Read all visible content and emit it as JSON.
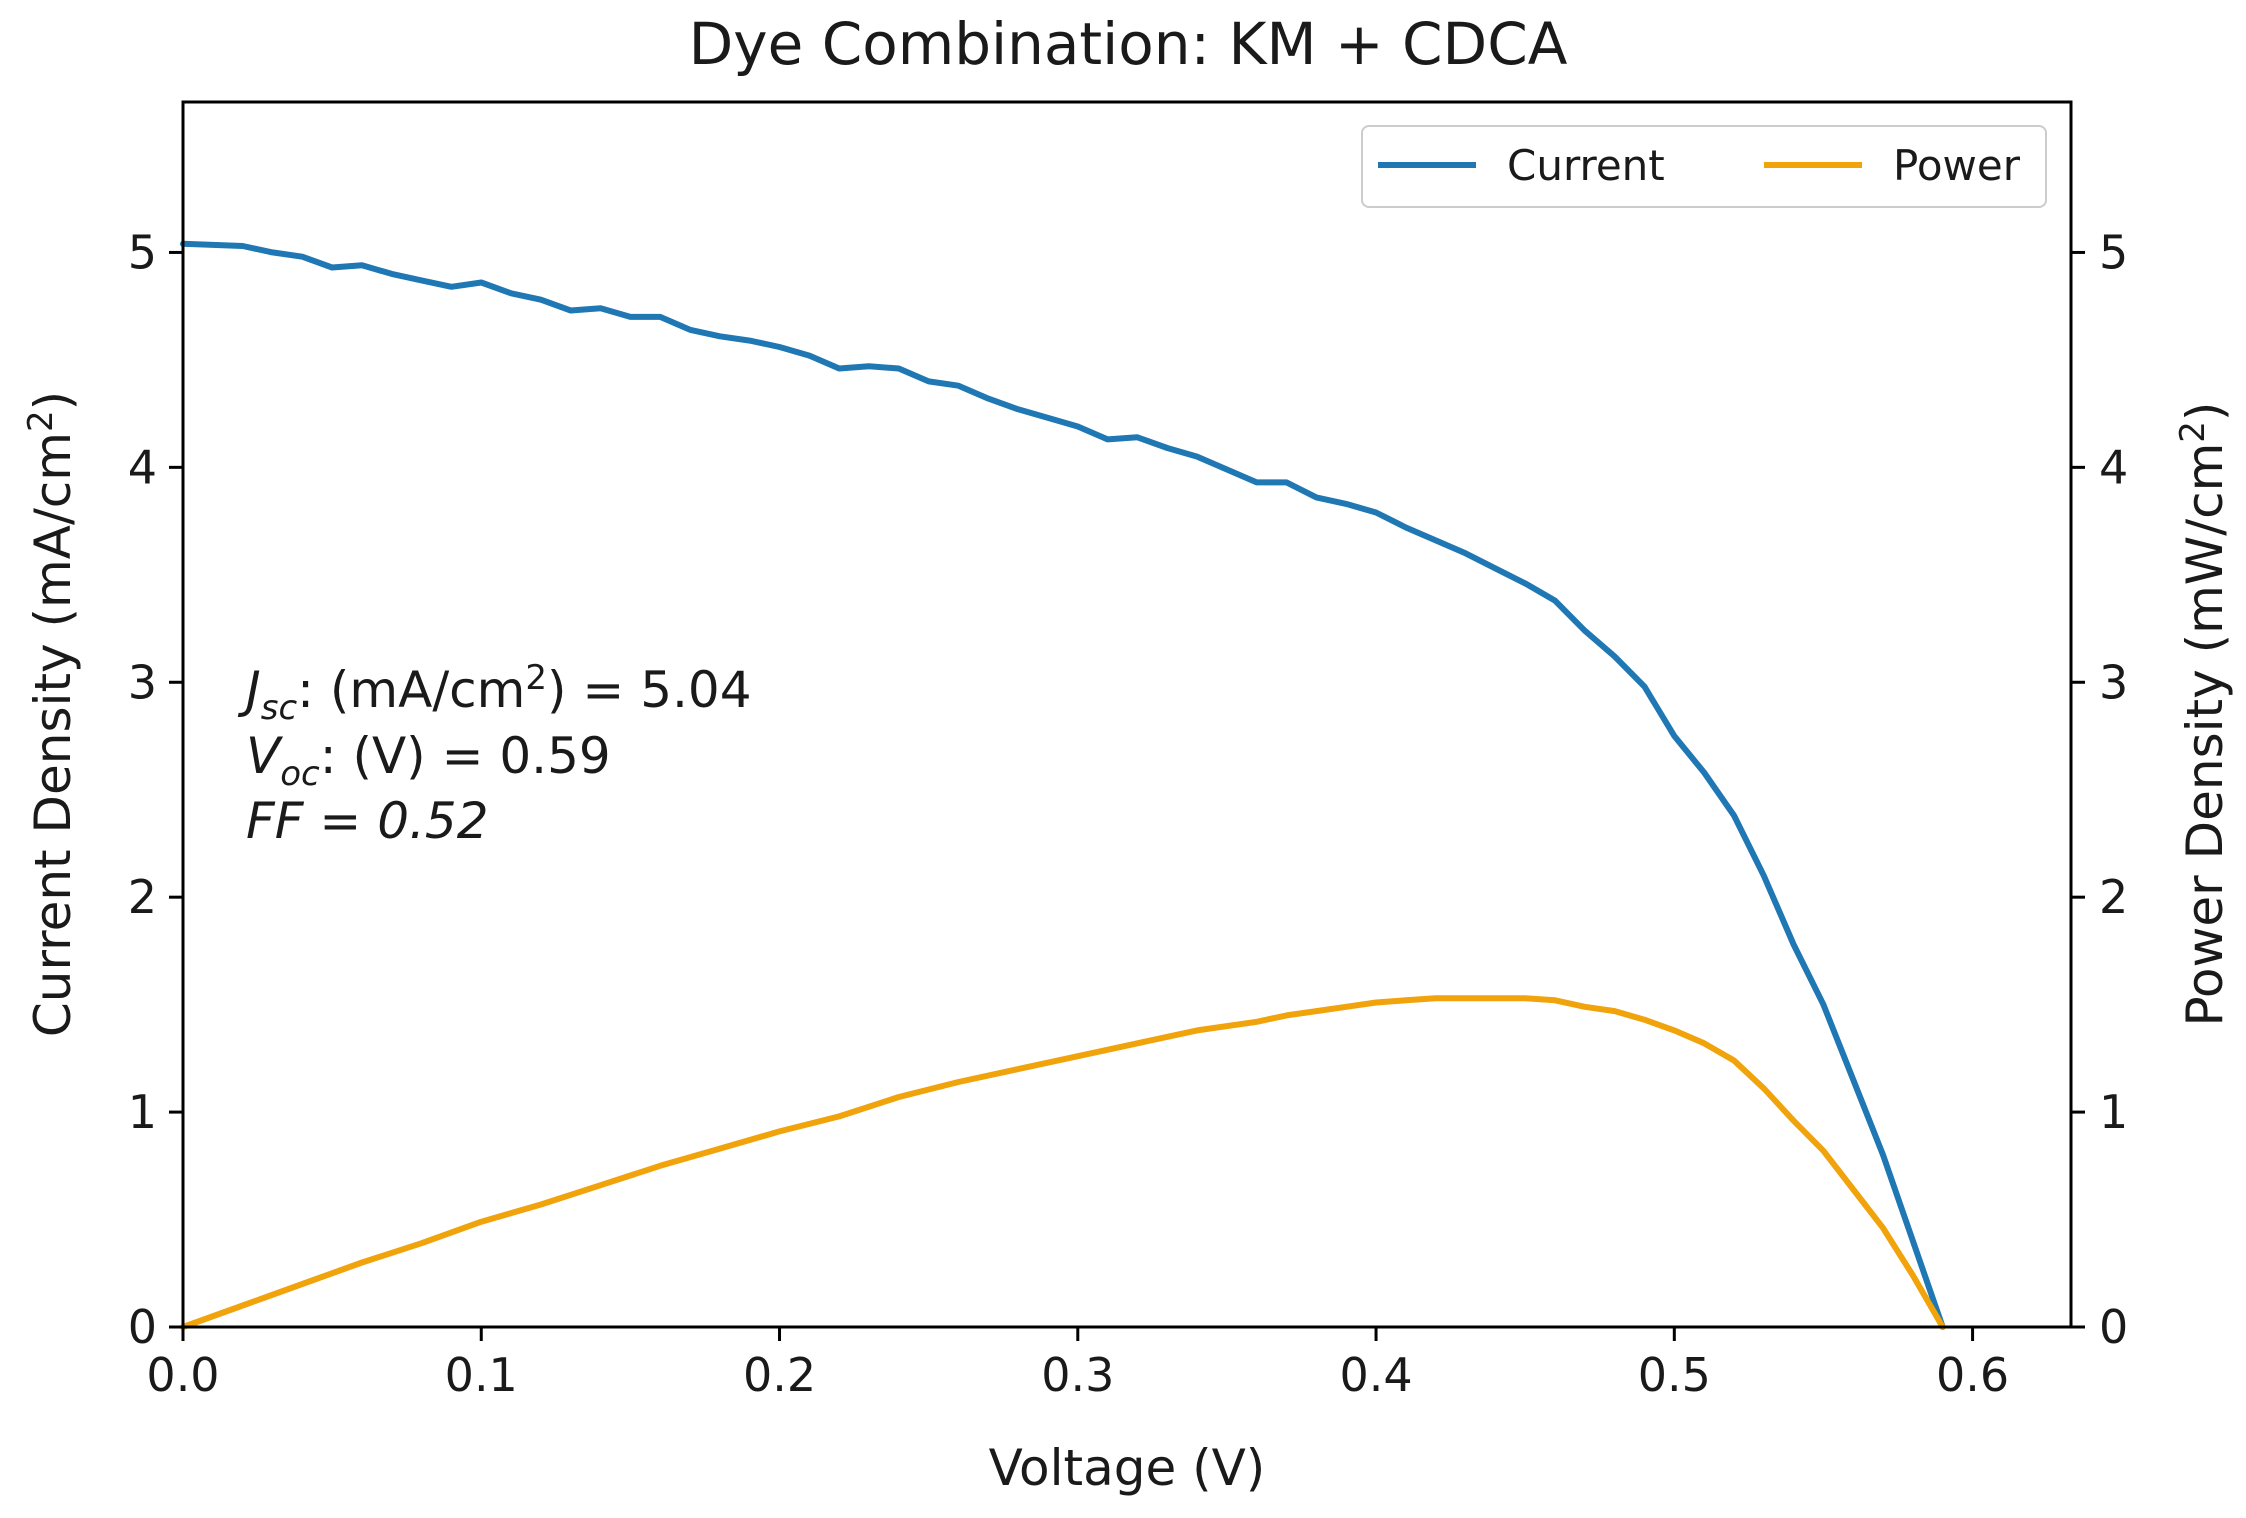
{
  "chart_data": {
    "type": "line",
    "title": "Dye Combination: KM + CDCA",
    "xlabel": "Voltage (V)",
    "ylabel_left": "Current Density (mA/cm²)",
    "ylabel_left_base": "Current Density (mA/cm",
    "ylabel_left_sup": "2",
    "ylabel_left_close": ")",
    "ylabel_right": "Power Density (mW/cm²)",
    "ylabel_right_base": "Power Density (mW/cm",
    "ylabel_right_sup": "2",
    "ylabel_right_close": ")",
    "xlim": [
      0.0,
      0.633
    ],
    "ylim_left": [
      0,
      5.7
    ],
    "ylim_right": [
      0,
      5.7
    ],
    "x_ticks": [
      "0.0",
      "0.1",
      "0.2",
      "0.3",
      "0.4",
      "0.5",
      "0.6"
    ],
    "y_ticks_left": [
      "0",
      "1",
      "2",
      "3",
      "4",
      "5"
    ],
    "y_ticks_right": [
      "0",
      "1",
      "2",
      "3",
      "4",
      "5"
    ],
    "grid": false,
    "legend_position": "top-right",
    "annotation": {
      "jsc_label": "J",
      "jsc_sub": "sc",
      "jsc_text_a": ": (mA/cm",
      "jsc_sup": "2",
      "jsc_text_b": ") = 5.04",
      "voc_label": "V",
      "voc_sub": "oc",
      "voc_text": ": (V) = 0.59",
      "ff_text": "FF = 0.52"
    },
    "series": [
      {
        "name": "Current",
        "axis": "left",
        "color": "#1f77b4",
        "x": [
          0.0,
          0.02,
          0.03,
          0.04,
          0.05,
          0.06,
          0.07,
          0.08,
          0.09,
          0.1,
          0.11,
          0.12,
          0.13,
          0.14,
          0.15,
          0.16,
          0.17,
          0.18,
          0.19,
          0.2,
          0.21,
          0.22,
          0.23,
          0.24,
          0.25,
          0.26,
          0.27,
          0.28,
          0.29,
          0.3,
          0.31,
          0.32,
          0.33,
          0.34,
          0.35,
          0.36,
          0.37,
          0.38,
          0.39,
          0.4,
          0.41,
          0.42,
          0.43,
          0.44,
          0.45,
          0.46,
          0.47,
          0.48,
          0.49,
          0.5,
          0.51,
          0.52,
          0.53,
          0.54,
          0.55,
          0.56,
          0.57,
          0.58,
          0.59
        ],
        "y": [
          5.04,
          5.03,
          5.0,
          4.98,
          4.93,
          4.94,
          4.9,
          4.87,
          4.84,
          4.86,
          4.81,
          4.78,
          4.73,
          4.74,
          4.7,
          4.7,
          4.64,
          4.61,
          4.59,
          4.56,
          4.52,
          4.46,
          4.47,
          4.46,
          4.4,
          4.38,
          4.32,
          4.27,
          4.23,
          4.19,
          4.13,
          4.14,
          4.09,
          4.05,
          3.99,
          3.93,
          3.93,
          3.86,
          3.83,
          3.79,
          3.72,
          3.66,
          3.6,
          3.53,
          3.46,
          3.38,
          3.24,
          3.12,
          2.98,
          2.75,
          2.58,
          2.38,
          2.1,
          1.78,
          1.5,
          1.15,
          0.8,
          0.4,
          0.0
        ]
      },
      {
        "name": "Power",
        "axis": "right",
        "color": "#f0a30a",
        "x": [
          0.0,
          0.02,
          0.04,
          0.06,
          0.08,
          0.1,
          0.12,
          0.14,
          0.16,
          0.18,
          0.2,
          0.22,
          0.24,
          0.26,
          0.28,
          0.3,
          0.32,
          0.34,
          0.36,
          0.37,
          0.38,
          0.39,
          0.4,
          0.41,
          0.42,
          0.43,
          0.44,
          0.45,
          0.46,
          0.47,
          0.48,
          0.49,
          0.5,
          0.51,
          0.52,
          0.53,
          0.54,
          0.55,
          0.56,
          0.57,
          0.58,
          0.59
        ],
        "y": [
          0.0,
          0.1,
          0.2,
          0.3,
          0.39,
          0.49,
          0.57,
          0.66,
          0.75,
          0.83,
          0.91,
          0.98,
          1.07,
          1.14,
          1.2,
          1.26,
          1.32,
          1.38,
          1.42,
          1.45,
          1.47,
          1.49,
          1.51,
          1.52,
          1.53,
          1.53,
          1.53,
          1.53,
          1.52,
          1.49,
          1.47,
          1.43,
          1.38,
          1.32,
          1.24,
          1.11,
          0.96,
          0.82,
          0.64,
          0.46,
          0.24,
          0.0
        ]
      }
    ]
  }
}
